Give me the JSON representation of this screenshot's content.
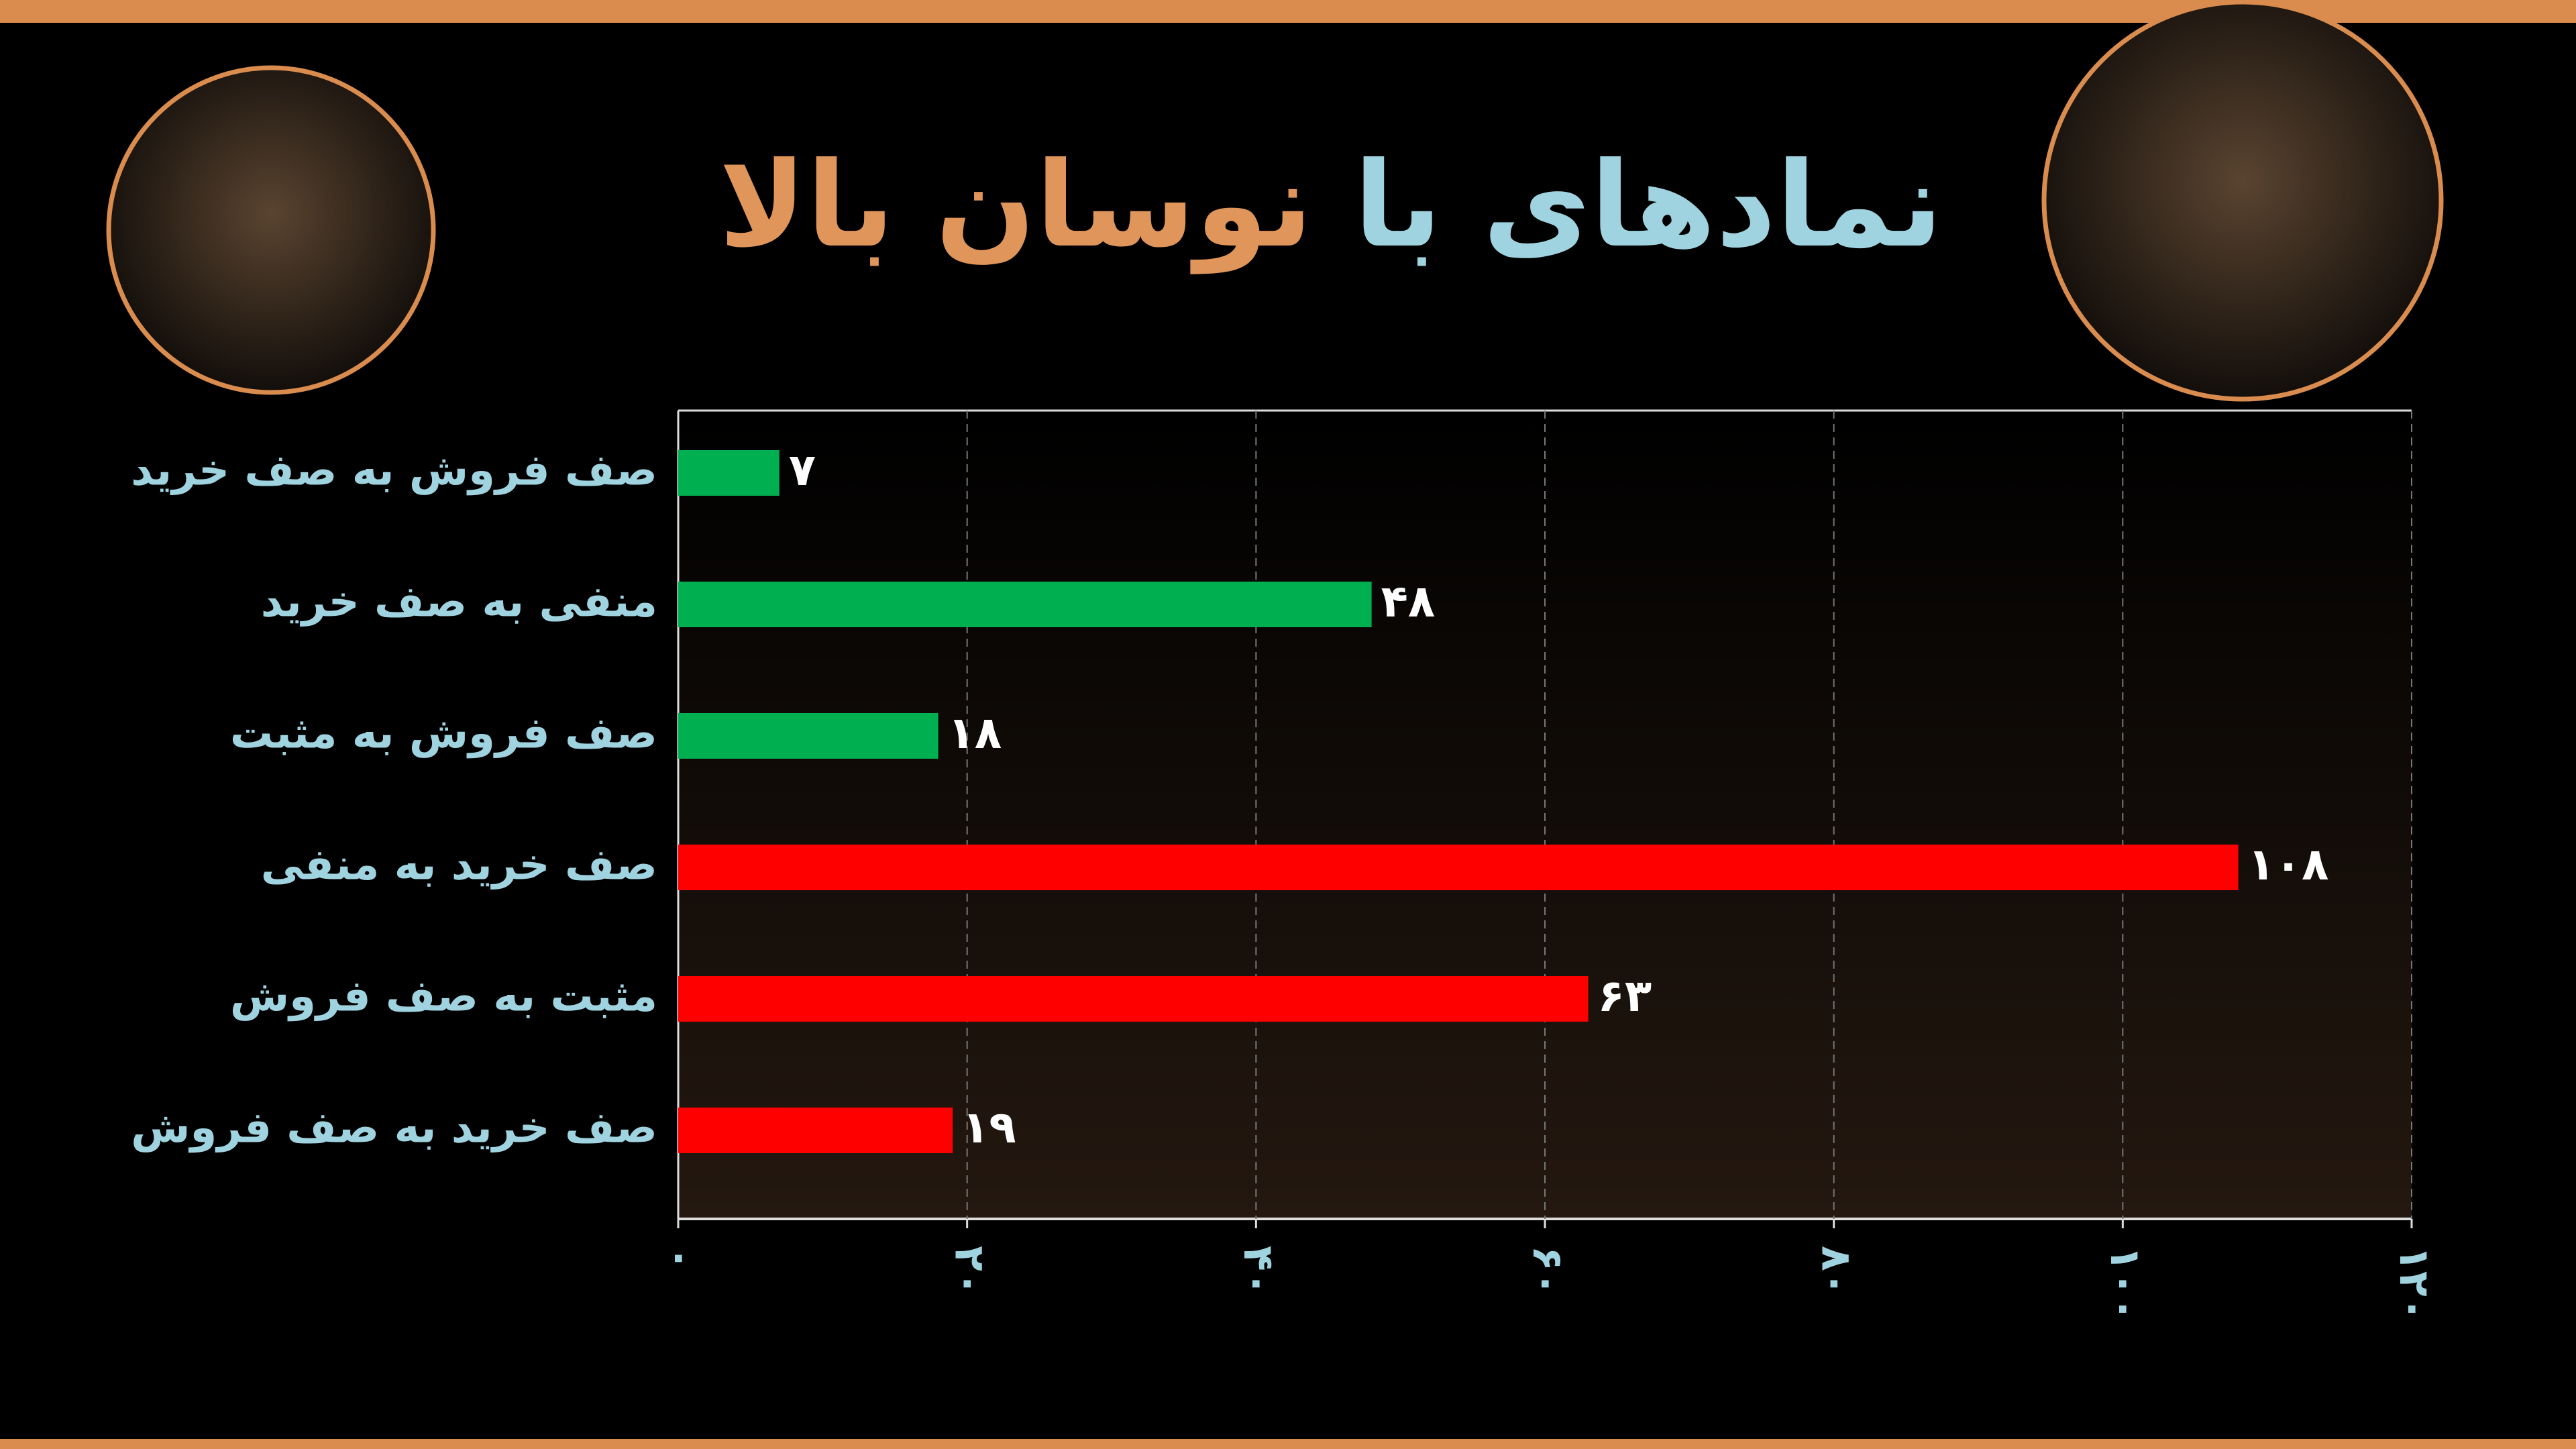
{
  "chart_data": {
    "type": "bar",
    "orientation": "horizontal",
    "title": [
      "نمادهای با",
      "نوسان بالا"
    ],
    "title_colors": [
      "#9fd3e0",
      "#e0955a"
    ],
    "categories": [
      "صف فروش به صف خرید",
      "منفی به صف خرید",
      "صف فروش به مثبت",
      "صف خرید به منفی",
      "مثبت به صف فروش",
      "صف خرید به صف فروش"
    ],
    "values": [
      7,
      48,
      18,
      108,
      63,
      19
    ],
    "value_labels": [
      "۷",
      "۴۸",
      "۱۸",
      "۱۰۸",
      "۶۳",
      "۱۹"
    ],
    "colors": [
      "#00b050",
      "#00b050",
      "#00b050",
      "#ff0000",
      "#ff0000",
      "#ff0000"
    ],
    "xlim": [
      0,
      120
    ],
    "xticks": [
      {
        "value": 0,
        "label": "۰"
      },
      {
        "value": 20,
        "label": "۲۰"
      },
      {
        "value": 40,
        "label": "۴۰"
      },
      {
        "value": 60,
        "label": "۶۰"
      },
      {
        "value": 80,
        "label": "۸۰"
      },
      {
        "value": 100,
        "label": "۱۰۰"
      },
      {
        "value": 120,
        "label": "۱۲۰"
      }
    ],
    "grid": true
  }
}
